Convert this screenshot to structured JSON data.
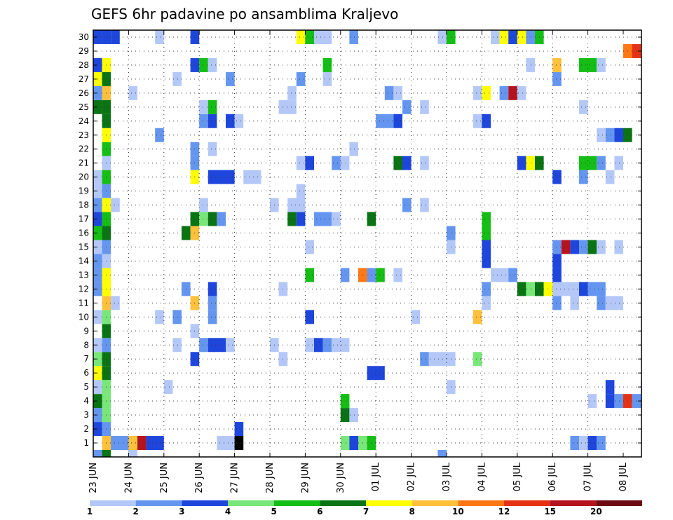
{
  "chart_data": {
    "type": "heatmap",
    "title": "GEFS 6hr padavine po ansamblima Kraljevo",
    "xlabel": "",
    "ylabel": "",
    "y_members": [
      1,
      2,
      3,
      4,
      5,
      6,
      7,
      8,
      9,
      10,
      11,
      12,
      13,
      14,
      15,
      16,
      17,
      18,
      19,
      20,
      21,
      22,
      23,
      24,
      25,
      26,
      27,
      28,
      29,
      30
    ],
    "x_ticks": [
      "23 JUN",
      "24 JUN",
      "25 JUN",
      "26 JUN",
      "27 JUN",
      "28 JUN",
      "29 JUN",
      "30 JUN",
      "01 JUL",
      "02 JUL",
      "03 JUL",
      "04 JUL",
      "05 JUL",
      "06 JUL",
      "07 JUL",
      "08 JUL"
    ],
    "x_range_steps": [
      0,
      61
    ],
    "grid": true,
    "legend": {
      "placement": "bottom",
      "labels": [
        "1",
        "2",
        "3",
        "4",
        "5",
        "6",
        "7",
        "8",
        "10",
        "12",
        "15",
        "20"
      ],
      "colors": [
        "#b4c8f8",
        "#6496f0",
        "#1e46dc",
        "#78e678",
        "#14be14",
        "#0a7314",
        "#ffff00",
        "#ffc03c",
        "#ff7814",
        "#e63214",
        "#b4141e",
        "#6e0a14"
      ]
    },
    "cells": [
      [
        1,
        1,
        5,
        8
      ],
      [
        1,
        2,
        2,
        2
      ],
      [
        1,
        5,
        1,
        11
      ],
      [
        1,
        6,
        2,
        3
      ],
      [
        1,
        14,
        3,
        1
      ],
      [
        1,
        16,
        1,
        13
      ],
      [
        1,
        28,
        3,
        4
      ],
      [
        1,
        29,
        1,
        3
      ],
      [
        1,
        30,
        1,
        4
      ],
      [
        1,
        31,
        1,
        5
      ],
      [
        1,
        54,
        1,
        2
      ],
      [
        1,
        55,
        1,
        1
      ],
      [
        1,
        56,
        1,
        3
      ],
      [
        1,
        57,
        1,
        2
      ],
      [
        1,
        71,
        1,
        5
      ],
      [
        1,
        72,
        1,
        12
      ],
      [
        2,
        0,
        1,
        3
      ],
      [
        2,
        1,
        1,
        2
      ],
      [
        2,
        16,
        1,
        3
      ],
      [
        2,
        64,
        2,
        1
      ],
      [
        3,
        0,
        1,
        2
      ],
      [
        3,
        1,
        1,
        4
      ],
      [
        3,
        28,
        1,
        6
      ],
      [
        3,
        29,
        1,
        1
      ],
      [
        4,
        0,
        1,
        6
      ],
      [
        4,
        1,
        1,
        4
      ],
      [
        4,
        28,
        1,
        5
      ],
      [
        4,
        56,
        1,
        1
      ],
      [
        4,
        58,
        1,
        3
      ],
      [
        4,
        59,
        1,
        2
      ],
      [
        4,
        60,
        1,
        10
      ],
      [
        4,
        61,
        1,
        2
      ],
      [
        4,
        62,
        1,
        3
      ],
      [
        4,
        63,
        1,
        2
      ],
      [
        4,
        64,
        1,
        2
      ],
      [
        4,
        65,
        1,
        3
      ],
      [
        4,
        66,
        1,
        2
      ],
      [
        4,
        67,
        1,
        11
      ],
      [
        4,
        68,
        1,
        4
      ],
      [
        4,
        70,
        1,
        3
      ],
      [
        4,
        80,
        1,
        6
      ],
      [
        5,
        0,
        1,
        1
      ],
      [
        5,
        1,
        1,
        4
      ],
      [
        5,
        8,
        1,
        1
      ],
      [
        5,
        40,
        1,
        1
      ],
      [
        5,
        58,
        1,
        3
      ],
      [
        5,
        62,
        1,
        3
      ],
      [
        5,
        65,
        1,
        3
      ],
      [
        5,
        66,
        1,
        2
      ],
      [
        5,
        69,
        2,
        1
      ],
      [
        6,
        0,
        1,
        7
      ],
      [
        6,
        1,
        1,
        6
      ],
      [
        6,
        31,
        2,
        3
      ],
      [
        6,
        66,
        1,
        2
      ],
      [
        6,
        67,
        2,
        1
      ],
      [
        6,
        69,
        1,
        4
      ],
      [
        7,
        0,
        1,
        4
      ],
      [
        7,
        1,
        1,
        6
      ],
      [
        7,
        11,
        1,
        3
      ],
      [
        7,
        21,
        1,
        1
      ],
      [
        7,
        37,
        1,
        2
      ],
      [
        7,
        38,
        3,
        1
      ],
      [
        7,
        43,
        1,
        4
      ],
      [
        8,
        0,
        1,
        1
      ],
      [
        8,
        1,
        1,
        2
      ],
      [
        8,
        9,
        1,
        1
      ],
      [
        8,
        12,
        1,
        2
      ],
      [
        8,
        13,
        2,
        3
      ],
      [
        8,
        15,
        1,
        1
      ],
      [
        8,
        20,
        1,
        1
      ],
      [
        8,
        24,
        1,
        1
      ],
      [
        8,
        25,
        1,
        3
      ],
      [
        8,
        26,
        1,
        2
      ],
      [
        8,
        27,
        2,
        1
      ],
      [
        9,
        1,
        1,
        6
      ],
      [
        9,
        11,
        1,
        1
      ],
      [
        9,
        74,
        1,
        1
      ],
      [
        10,
        0,
        1,
        1
      ],
      [
        10,
        1,
        1,
        4
      ],
      [
        10,
        7,
        1,
        1
      ],
      [
        10,
        9,
        1,
        2
      ],
      [
        10,
        13,
        1,
        2
      ],
      [
        10,
        24,
        1,
        3
      ],
      [
        10,
        36,
        1,
        1
      ],
      [
        10,
        43,
        1,
        8
      ],
      [
        11,
        1,
        1,
        8
      ],
      [
        11,
        2,
        1,
        1
      ],
      [
        11,
        11,
        1,
        8
      ],
      [
        11,
        13,
        1,
        2
      ],
      [
        11,
        44,
        1,
        1
      ],
      [
        11,
        52,
        1,
        2
      ],
      [
        11,
        54,
        1,
        1
      ],
      [
        11,
        57,
        1,
        2
      ],
      [
        11,
        58,
        2,
        1
      ],
      [
        12,
        0,
        1,
        2
      ],
      [
        12,
        1,
        1,
        7
      ],
      [
        12,
        10,
        1,
        2
      ],
      [
        12,
        13,
        1,
        3
      ],
      [
        12,
        21,
        1,
        1
      ],
      [
        12,
        44,
        1,
        2
      ],
      [
        12,
        48,
        1,
        6
      ],
      [
        12,
        49,
        1,
        4
      ],
      [
        12,
        50,
        1,
        6
      ],
      [
        12,
        51,
        1,
        7
      ],
      [
        12,
        52,
        3,
        1
      ],
      [
        12,
        55,
        1,
        3
      ],
      [
        12,
        56,
        2,
        2
      ],
      [
        13,
        0,
        1,
        2
      ],
      [
        13,
        1,
        1,
        7
      ],
      [
        13,
        24,
        1,
        5
      ],
      [
        13,
        28,
        1,
        2
      ],
      [
        13,
        30,
        1,
        9
      ],
      [
        13,
        31,
        1,
        2
      ],
      [
        13,
        32,
        1,
        5
      ],
      [
        13,
        34,
        1,
        1
      ],
      [
        13,
        45,
        2,
        1
      ],
      [
        13,
        47,
        1,
        2
      ],
      [
        13,
        52,
        1,
        3
      ],
      [
        14,
        0,
        1,
        2
      ],
      [
        14,
        1,
        1,
        1
      ],
      [
        14,
        44,
        1,
        3
      ],
      [
        14,
        52,
        1,
        3
      ],
      [
        15,
        0,
        1,
        1
      ],
      [
        15,
        1,
        1,
        2
      ],
      [
        15,
        24,
        1,
        1
      ],
      [
        15,
        40,
        1,
        1
      ],
      [
        15,
        44,
        1,
        3
      ],
      [
        15,
        52,
        1,
        2
      ],
      [
        15,
        53,
        1,
        11
      ],
      [
        15,
        54,
        1,
        3
      ],
      [
        15,
        55,
        1,
        2
      ],
      [
        15,
        56,
        1,
        6
      ],
      [
        15,
        57,
        1,
        1
      ],
      [
        15,
        59,
        1,
        1
      ],
      [
        16,
        0,
        1,
        5
      ],
      [
        16,
        1,
        1,
        6
      ],
      [
        16,
        10,
        1,
        6
      ],
      [
        16,
        11,
        1,
        8
      ],
      [
        16,
        40,
        1,
        2
      ],
      [
        16,
        44,
        1,
        5
      ],
      [
        17,
        0,
        1,
        3
      ],
      [
        17,
        1,
        1,
        5
      ],
      [
        17,
        11,
        1,
        6
      ],
      [
        17,
        12,
        1,
        4
      ],
      [
        17,
        13,
        1,
        6
      ],
      [
        17,
        14,
        1,
        2
      ],
      [
        17,
        22,
        1,
        6
      ],
      [
        17,
        23,
        1,
        3
      ],
      [
        17,
        25,
        2,
        2
      ],
      [
        17,
        27,
        1,
        1
      ],
      [
        17,
        31,
        1,
        6
      ],
      [
        17,
        44,
        1,
        5
      ],
      [
        18,
        0,
        1,
        2
      ],
      [
        18,
        1,
        1,
        7
      ],
      [
        18,
        2,
        1,
        1
      ],
      [
        18,
        12,
        1,
        1
      ],
      [
        18,
        20,
        1,
        1
      ],
      [
        18,
        22,
        2,
        1
      ],
      [
        18,
        35,
        1,
        2
      ],
      [
        18,
        37,
        1,
        1
      ],
      [
        18,
        76,
        1,
        3
      ],
      [
        19,
        0,
        1,
        1
      ],
      [
        19,
        1,
        1,
        2
      ],
      [
        19,
        23,
        1,
        1
      ],
      [
        19,
        75,
        1,
        1
      ],
      [
        20,
        0,
        1,
        1
      ],
      [
        20,
        1,
        1,
        5
      ],
      [
        20,
        11,
        1,
        7
      ],
      [
        20,
        13,
        3,
        3
      ],
      [
        20,
        17,
        2,
        1
      ],
      [
        20,
        52,
        1,
        3
      ],
      [
        20,
        55,
        1,
        2
      ],
      [
        20,
        58,
        1,
        1
      ],
      [
        21,
        1,
        1,
        1
      ],
      [
        21,
        11,
        1,
        2
      ],
      [
        21,
        23,
        1,
        1
      ],
      [
        21,
        24,
        1,
        3
      ],
      [
        21,
        27,
        1,
        2
      ],
      [
        21,
        28,
        1,
        1
      ],
      [
        21,
        34,
        1,
        6
      ],
      [
        21,
        35,
        1,
        3
      ],
      [
        21,
        37,
        1,
        1
      ],
      [
        21,
        48,
        1,
        3
      ],
      [
        21,
        49,
        1,
        7
      ],
      [
        21,
        50,
        1,
        6
      ],
      [
        21,
        55,
        2,
        5
      ],
      [
        21,
        57,
        1,
        2
      ],
      [
        21,
        59,
        1,
        1
      ],
      [
        22,
        1,
        1,
        5
      ],
      [
        22,
        11,
        1,
        2
      ],
      [
        22,
        13,
        1,
        1
      ],
      [
        22,
        29,
        1,
        1
      ],
      [
        23,
        1,
        1,
        7
      ],
      [
        23,
        7,
        1,
        2
      ],
      [
        23,
        57,
        1,
        1
      ],
      [
        23,
        58,
        1,
        2
      ],
      [
        23,
        59,
        1,
        3
      ],
      [
        23,
        60,
        1,
        6
      ],
      [
        24,
        1,
        1,
        6
      ],
      [
        24,
        12,
        1,
        2
      ],
      [
        24,
        13,
        1,
        3
      ],
      [
        24,
        15,
        1,
        3
      ],
      [
        24,
        16,
        1,
        1
      ],
      [
        24,
        32,
        2,
        2
      ],
      [
        24,
        34,
        1,
        3
      ],
      [
        24,
        43,
        1,
        1
      ],
      [
        24,
        44,
        1,
        3
      ],
      [
        25,
        0,
        1,
        6
      ],
      [
        25,
        1,
        1,
        6
      ],
      [
        25,
        12,
        1,
        1
      ],
      [
        25,
        13,
        1,
        5
      ],
      [
        25,
        21,
        2,
        1
      ],
      [
        25,
        35,
        1,
        2
      ],
      [
        25,
        37,
        1,
        1
      ],
      [
        25,
        55,
        1,
        1
      ],
      [
        26,
        0,
        1,
        2
      ],
      [
        26,
        1,
        1,
        8
      ],
      [
        26,
        4,
        1,
        1
      ],
      [
        26,
        22,
        1,
        1
      ],
      [
        26,
        33,
        1,
        2
      ],
      [
        26,
        34,
        1,
        1
      ],
      [
        26,
        43,
        1,
        1
      ],
      [
        26,
        44,
        1,
        7
      ],
      [
        26,
        46,
        1,
        2
      ],
      [
        26,
        47,
        1,
        11
      ],
      [
        26,
        48,
        1,
        1
      ],
      [
        27,
        0,
        1,
        7
      ],
      [
        27,
        1,
        1,
        6
      ],
      [
        27,
        9,
        1,
        1
      ],
      [
        27,
        15,
        1,
        2
      ],
      [
        27,
        23,
        1,
        2
      ],
      [
        27,
        26,
        1,
        1
      ],
      [
        27,
        52,
        1,
        2
      ],
      [
        28,
        0,
        1,
        3
      ],
      [
        28,
        1,
        1,
        7
      ],
      [
        28,
        11,
        1,
        3
      ],
      [
        28,
        12,
        1,
        5
      ],
      [
        28,
        13,
        1,
        1
      ],
      [
        28,
        26,
        1,
        5
      ],
      [
        28,
        49,
        1,
        1
      ],
      [
        28,
        52,
        1,
        8
      ],
      [
        28,
        55,
        2,
        5
      ],
      [
        28,
        57,
        1,
        1
      ],
      [
        29,
        60,
        1,
        9
      ],
      [
        29,
        61,
        1,
        10
      ],
      [
        30,
        0,
        1,
        3
      ],
      [
        30,
        1,
        1,
        3
      ],
      [
        30,
        2,
        1,
        3
      ],
      [
        30,
        7,
        1,
        1
      ],
      [
        30,
        11,
        1,
        3
      ],
      [
        30,
        23,
        1,
        7
      ],
      [
        30,
        24,
        1,
        5
      ],
      [
        30,
        25,
        2,
        1
      ],
      [
        30,
        29,
        1,
        2
      ],
      [
        30,
        39,
        1,
        1
      ],
      [
        30,
        40,
        1,
        5
      ],
      [
        30,
        45,
        1,
        1
      ],
      [
        30,
        46,
        1,
        7
      ],
      [
        30,
        47,
        1,
        3
      ],
      [
        30,
        48,
        1,
        7
      ],
      [
        30,
        49,
        1,
        2
      ],
      [
        30,
        50,
        1,
        5
      ],
      [
        0,
        0,
        1,
        2
      ],
      [
        0,
        1,
        1,
        6
      ],
      [
        0,
        4,
        1,
        1
      ],
      [
        0,
        39,
        1,
        2
      ]
    ]
  }
}
